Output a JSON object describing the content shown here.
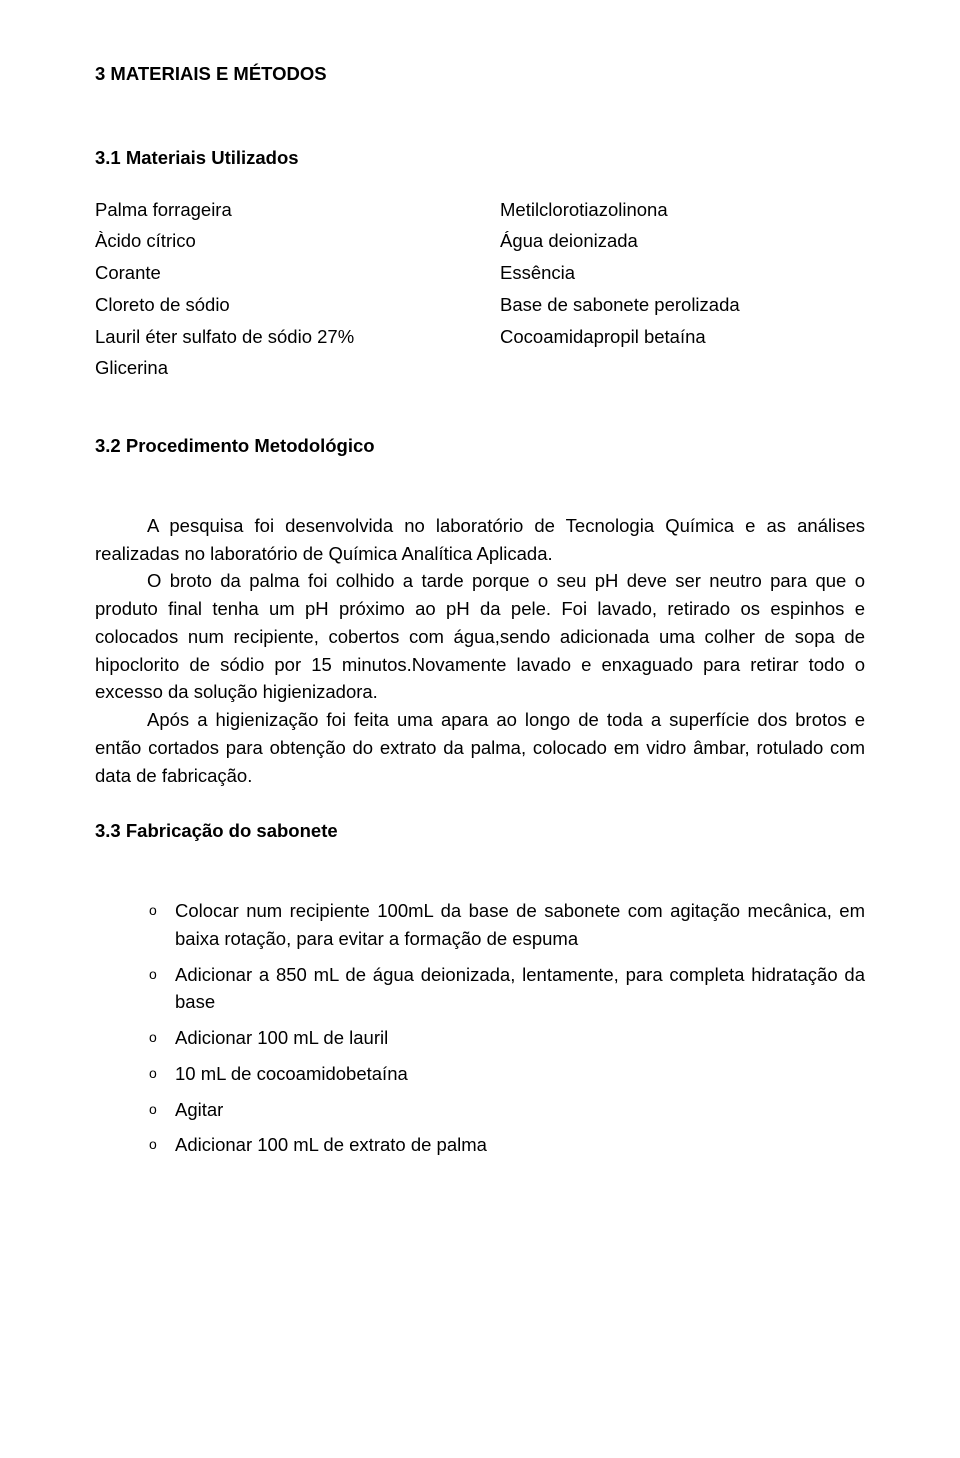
{
  "section_title": "3 MATERIAIS E MÉTODOS",
  "sub1_title": "3.1 Materiais Utilizados",
  "left_items": [
    "Palma forrageira",
    "Àcido cítrico",
    "Corante",
    "Cloreto de sódio",
    "Lauril éter sulfato de sódio 27%",
    "Glicerina"
  ],
  "right_items": [
    "Metilclorotiazolinona",
    "Água deionizada",
    "Essência",
    "Base de sabonete perolizada",
    "Cocoamidapropil betaína"
  ],
  "sub2_title": "3.2 Procedimento Metodológico",
  "para1": "A pesquisa foi desenvolvida no laboratório de Tecnologia Química e as análises realizadas no laboratório de Química Analítica Aplicada.",
  "para2": "O broto da palma foi colhido a tarde porque o seu pH deve ser neutro  para que o produto final tenha um pH próximo ao pH da pele. Foi lavado, retirado os espinhos e colocados num recipiente, cobertos com água,sendo adicionada uma colher de sopa de hipoclorito de sódio por 15 minutos.Novamente lavado e enxaguado para retirar  todo o excesso da solução higienizadora.",
  "para3": "Após a higienização foi feita uma apara ao longo de  toda a superfície  dos brotos e então cortados para obtenção do extrato da palma, colocado em vidro âmbar, rotulado com data de fabricação.",
  "sub3_title": "3.3 Fabricação do sabonete",
  "steps": [
    "Colocar num recipiente 100mL da base de sabonete com agitação mecânica, em baixa  rotação, para evitar a formação de espuma",
    "Adicionar a 850 mL de água deionizada, lentamente, para completa hidratação da base",
    "Adicionar 100 mL de lauril",
    "10 mL de cocoamidobetaína",
    "Agitar",
    "Adicionar  100 mL de extrato de palma"
  ],
  "list_marker": "o"
}
